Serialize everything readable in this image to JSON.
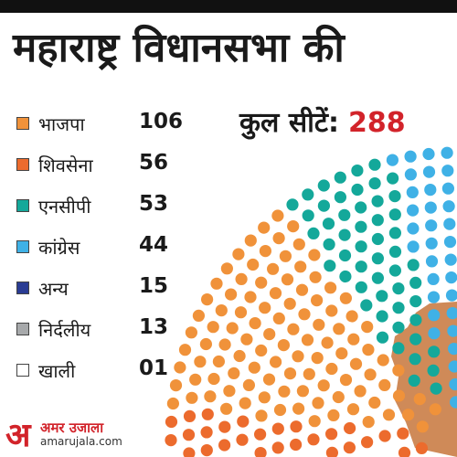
{
  "header": {
    "title": "महाराष्ट्र विधानसभा की"
  },
  "total": {
    "label": "कुल सीटें:",
    "value": "288"
  },
  "chart_data": {
    "type": "parliament",
    "title": "महाराष्ट्र विधानसभा की",
    "total_seats": 288,
    "series": [
      {
        "name": "भाजपा",
        "value": 106,
        "label": "106",
        "color": "#f0923a"
      },
      {
        "name": "शिवसेना",
        "value": 56,
        "label": "56",
        "color": "#ec6b2d"
      },
      {
        "name": "एनसीपी",
        "value": 53,
        "label": "53",
        "color": "#14a89a"
      },
      {
        "name": "कांग्रेस",
        "value": 44,
        "label": "44",
        "color": "#3fb1e6"
      },
      {
        "name": "अन्य",
        "value": 15,
        "label": "15",
        "color": "#2a3c93"
      },
      {
        "name": "निर्दलीय",
        "value": 13,
        "label": "13",
        "color": "#a7a9ab"
      },
      {
        "name": "खाली",
        "value": 1,
        "label": "01",
        "color": "#ffffff"
      }
    ],
    "legend_position": "left"
  },
  "map_color": "#cf8a58",
  "logo": {
    "mark": "अ",
    "name": "अमर उजाला",
    "url": "amarujala.com"
  }
}
